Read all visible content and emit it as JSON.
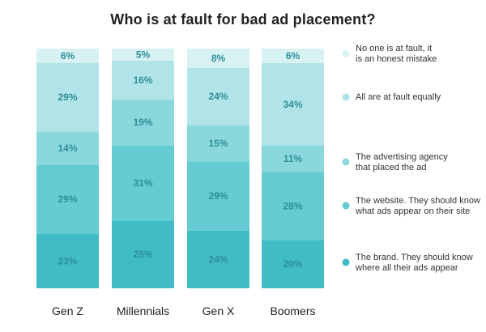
{
  "chart_data": {
    "type": "bar",
    "stacked": true,
    "orientation": "vertical",
    "title": "Who is at fault for bad ad placement?",
    "categories": [
      "Gen Z",
      "Millennials",
      "Gen X",
      "Boomers"
    ],
    "value_suffix": "%",
    "series": [
      {
        "name": "The brand. They should know where all their ads appear",
        "color": "#40bcc6",
        "values": [
          23,
          28,
          24,
          20
        ]
      },
      {
        "name": "The website. They should know what ads appear on their site",
        "color": "#64ccd2",
        "values": [
          29,
          31,
          29,
          28
        ]
      },
      {
        "name": "The advertising agency that placed the ad",
        "color": "#8ad8dc",
        "values": [
          14,
          19,
          15,
          11
        ]
      },
      {
        "name": "All are at fault equally",
        "color": "#b0e4e8",
        "values": [
          29,
          16,
          24,
          34
        ]
      },
      {
        "name": "No one is at fault, it is an honest mistake",
        "color": "#d8f2f4",
        "values": [
          6,
          5,
          8,
          6
        ]
      }
    ],
    "legend_position": "right",
    "label_color": "#2e8f98",
    "grid": false
  }
}
